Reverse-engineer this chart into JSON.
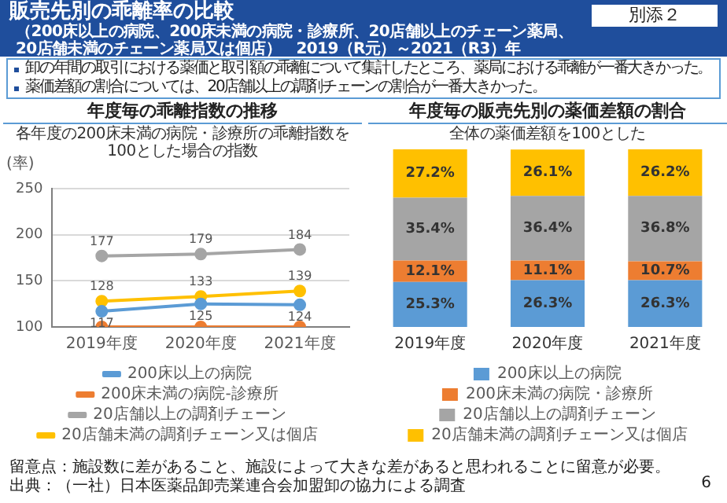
{
  "chart_data": [
    {
      "type": "other",
      "title": "販売先別の乖離率の比較",
      "subtitle": "（200床以上の病院、200床未満の病院・診療所、20店舗以上のチェーン薬局、20店舗未満のチェーン薬局又は個店）　2019（R元）～2021（R3）年",
      "annotations": [
        "別添２",
        "卸の年間の取引における薬価と取引額の乖離について集計したところ、薬局における乖離が一番大きかった。",
        "薬価差額の割合については、20店舗以上の調剤チェーンの割合が一番大きかった。",
        "留意点：施設数に差があること、施設によって大きな差があると思われることに留意が必要。",
        "出典：（一社）日本医薬品卸売業連合会加盟卸の協力による調査",
        "6"
      ]
    },
    {
      "type": "line",
      "title": "年度毎の乖離指数の推移",
      "subtitle": "各年度の200床未満の病院・診療所の乖離指数を100とした場合の指数",
      "ylabel": "(率)",
      "categories": [
        "2019年度",
        "2020年度",
        "2021年度"
      ],
      "ylim": [
        100,
        250
      ],
      "yticks": [
        100,
        150,
        200,
        250
      ],
      "grid": "y",
      "legend": "bottom",
      "marker": "circle",
      "series": [
        {
          "name": "200床以上の病院",
          "color": "#5b9bd5",
          "values": [
            117,
            125,
            124
          ],
          "value_labels": [
            "117",
            "125",
            "124"
          ]
        },
        {
          "name": "200床未満の病院-診療所",
          "color": "#ed7d31",
          "values": [
            100,
            100,
            100
          ],
          "value_labels": [
            null,
            null,
            null
          ]
        },
        {
          "name": "20店舗以上の調剤チェーン",
          "color": "#a5a5a5",
          "values": [
            177,
            179,
            184
          ],
          "value_labels": [
            "177",
            "179",
            "184"
          ]
        },
        {
          "name": "20店舗未満の調剤チェーン又は個店",
          "color": "#ffc000",
          "values": [
            128,
            133,
            139
          ],
          "value_labels": [
            "128",
            "133",
            "139"
          ]
        }
      ]
    },
    {
      "type": "bar",
      "title": "年度毎の販売先別の薬価差額の割合",
      "subtitle": "全体の薬価差額を100とした",
      "categories": [
        "2019年度",
        "2020年度",
        "2021年度"
      ],
      "stacked": true,
      "legend": "bottom",
      "tick_labels": "x",
      "series": [
        {
          "name": "200床以上の病院",
          "color": "#5b9bd5",
          "values": [
            25.3,
            26.3,
            26.3
          ],
          "value_labels": [
            "25.3%",
            "26.3%",
            "26.3%"
          ]
        },
        {
          "name": "200床未満の病院・診療所",
          "color": "#ed7d31",
          "values": [
            12.1,
            11.1,
            10.7
          ],
          "value_labels": [
            "12.1%",
            "11.1%",
            "10.7%"
          ]
        },
        {
          "name": "20店舗以上の調剤チェーン",
          "color": "#a5a5a5",
          "values": [
            35.4,
            36.4,
            36.8
          ],
          "value_labels": [
            "35.4%",
            "36.4%",
            "36.8%"
          ]
        },
        {
          "name": "20店舗未満の調剤チェーン又は個店",
          "color": "#ffc000",
          "values": [
            27.2,
            26.1,
            26.2
          ],
          "value_labels": [
            "27.2%",
            "26.1%",
            "26.2%"
          ]
        }
      ]
    }
  ]
}
